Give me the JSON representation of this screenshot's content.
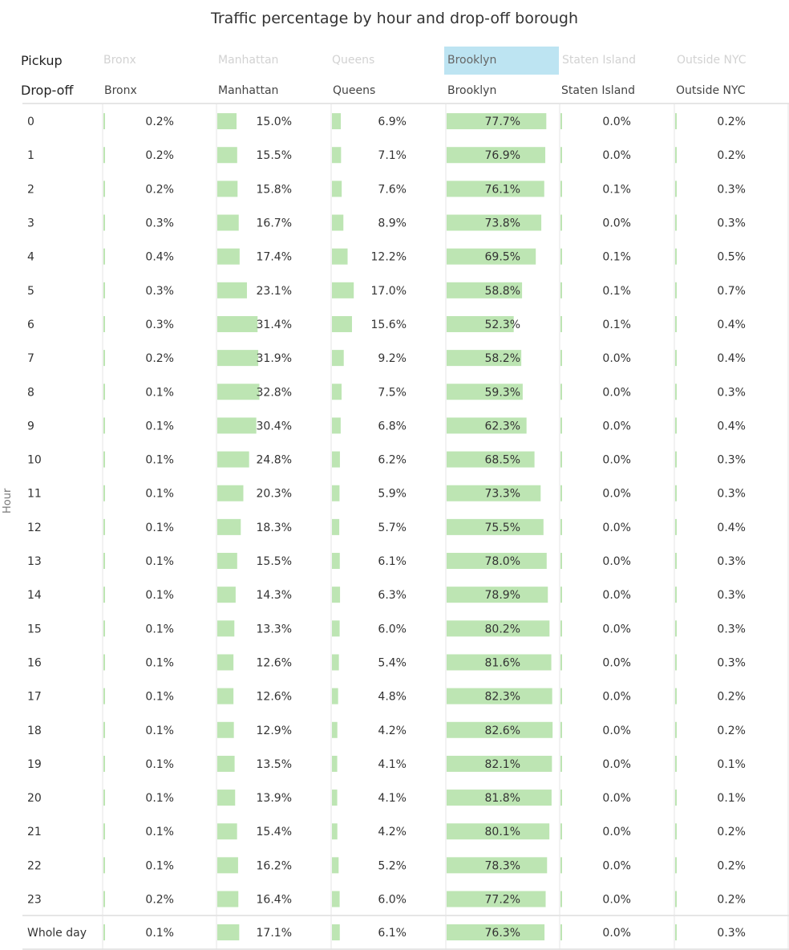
{
  "title": "Traffic percentage by hour and drop-off borough",
  "pickup_label": "Pickup",
  "dropoff_label": "Drop-off",
  "hour_axis_label": "Hour",
  "selected_pickup": "Brooklyn",
  "colors": {
    "bar": "#bde5b3",
    "selected_pickup_bg": "#bde4f2",
    "divider": "#e4e4e4"
  },
  "pickup_filters": [
    "Bronx",
    "Manhattan",
    "Queens",
    "Brooklyn",
    "Staten Island",
    "Outside NYC"
  ],
  "chart_data": {
    "type": "table",
    "title": "Traffic percentage by hour and drop-off borough",
    "row_axis_label": "Hour",
    "columns": [
      "Bronx",
      "Manhattan",
      "Queens",
      "Brooklyn",
      "Staten Island",
      "Outside NYC"
    ],
    "rows": [
      {
        "label": "0",
        "values": [
          0.2,
          15.0,
          6.9,
          77.7,
          0.0,
          0.2
        ]
      },
      {
        "label": "1",
        "values": [
          0.2,
          15.5,
          7.1,
          76.9,
          0.0,
          0.2
        ]
      },
      {
        "label": "2",
        "values": [
          0.2,
          15.8,
          7.6,
          76.1,
          0.1,
          0.3
        ]
      },
      {
        "label": "3",
        "values": [
          0.3,
          16.7,
          8.9,
          73.8,
          0.0,
          0.3
        ]
      },
      {
        "label": "4",
        "values": [
          0.4,
          17.4,
          12.2,
          69.5,
          0.1,
          0.5
        ]
      },
      {
        "label": "5",
        "values": [
          0.3,
          23.1,
          17.0,
          58.8,
          0.1,
          0.7
        ]
      },
      {
        "label": "6",
        "values": [
          0.3,
          31.4,
          15.6,
          52.3,
          0.1,
          0.4
        ]
      },
      {
        "label": "7",
        "values": [
          0.2,
          31.9,
          9.2,
          58.2,
          0.0,
          0.4
        ]
      },
      {
        "label": "8",
        "values": [
          0.1,
          32.8,
          7.5,
          59.3,
          0.0,
          0.3
        ]
      },
      {
        "label": "9",
        "values": [
          0.1,
          30.4,
          6.8,
          62.3,
          0.0,
          0.4
        ]
      },
      {
        "label": "10",
        "values": [
          0.1,
          24.8,
          6.2,
          68.5,
          0.0,
          0.3
        ]
      },
      {
        "label": "11",
        "values": [
          0.1,
          20.3,
          5.9,
          73.3,
          0.0,
          0.3
        ]
      },
      {
        "label": "12",
        "values": [
          0.1,
          18.3,
          5.7,
          75.5,
          0.0,
          0.4
        ]
      },
      {
        "label": "13",
        "values": [
          0.1,
          15.5,
          6.1,
          78.0,
          0.0,
          0.3
        ]
      },
      {
        "label": "14",
        "values": [
          0.1,
          14.3,
          6.3,
          78.9,
          0.0,
          0.3
        ]
      },
      {
        "label": "15",
        "values": [
          0.1,
          13.3,
          6.0,
          80.2,
          0.0,
          0.3
        ]
      },
      {
        "label": "16",
        "values": [
          0.1,
          12.6,
          5.4,
          81.6,
          0.0,
          0.3
        ]
      },
      {
        "label": "17",
        "values": [
          0.1,
          12.6,
          4.8,
          82.3,
          0.0,
          0.2
        ]
      },
      {
        "label": "18",
        "values": [
          0.1,
          12.9,
          4.2,
          82.6,
          0.0,
          0.2
        ]
      },
      {
        "label": "19",
        "values": [
          0.1,
          13.5,
          4.1,
          82.1,
          0.0,
          0.1
        ]
      },
      {
        "label": "20",
        "values": [
          0.1,
          13.9,
          4.1,
          81.8,
          0.0,
          0.1
        ]
      },
      {
        "label": "21",
        "values": [
          0.1,
          15.4,
          4.2,
          80.1,
          0.0,
          0.2
        ]
      },
      {
        "label": "22",
        "values": [
          0.1,
          16.2,
          5.2,
          78.3,
          0.0,
          0.2
        ]
      },
      {
        "label": "23",
        "values": [
          0.2,
          16.4,
          6.0,
          77.2,
          0.0,
          0.2
        ]
      }
    ],
    "total_row": {
      "label": "Whole day",
      "values": [
        0.1,
        17.1,
        6.1,
        76.3,
        0.0,
        0.3
      ]
    },
    "value_unit": "%",
    "bar_scale_max": 100
  }
}
